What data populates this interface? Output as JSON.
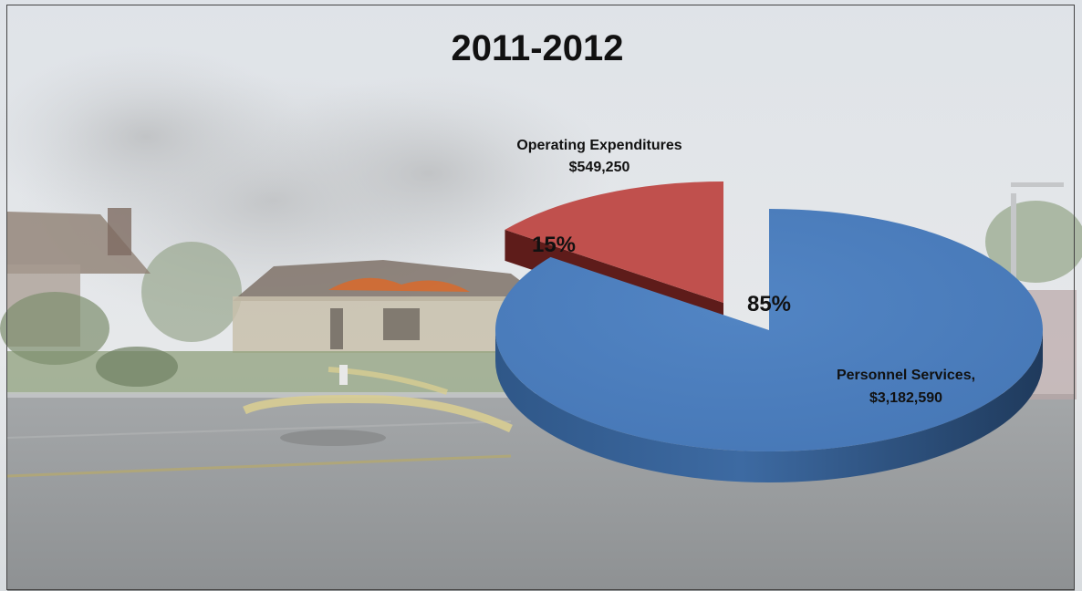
{
  "chart_data": {
    "type": "pie",
    "title": "2011-2012",
    "categories": [
      "Personnel Services",
      "Operating Expenditures"
    ],
    "values": [
      3182590,
      549250
    ],
    "value_labels": [
      "Personnel Services,",
      "$3,182,590",
      "Operating Expenditures",
      "$549,250"
    ],
    "series": [
      {
        "values": [
          3182590,
          549250
        ]
      }
    ],
    "slices": [
      {
        "category": "Personnel Services",
        "name_label": "Personnel Services,",
        "value_label": "$3,182,590",
        "value": 3182590,
        "percent_label": "85%",
        "color": "#4a7ebb",
        "exploded": false
      },
      {
        "category": "Operating Expenditures",
        "name_label": "Operating Expenditures",
        "value_label": "$549,250",
        "value": 549250,
        "percent_label": "15%",
        "color": "#c0504d",
        "exploded": true
      }
    ],
    "style": "3d-exploded-pie",
    "legend": "none"
  },
  "background": {
    "photo": "house-fire-street-scene"
  }
}
